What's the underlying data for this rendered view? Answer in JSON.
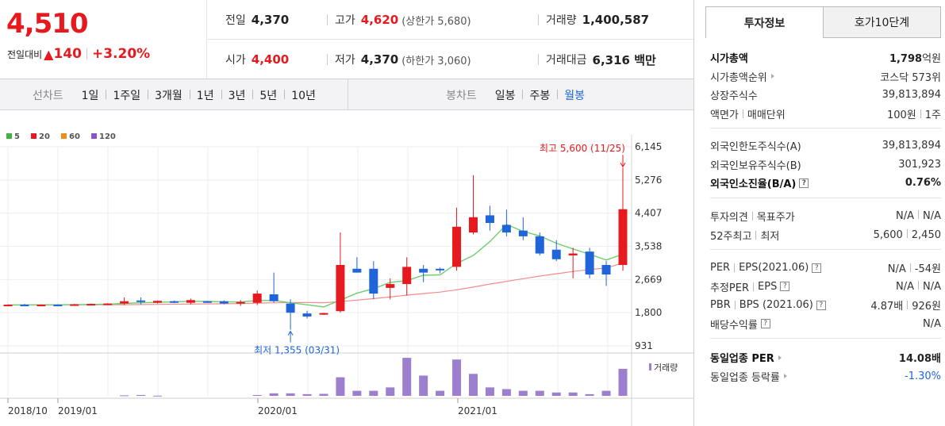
{
  "quote": {
    "price": "4,510",
    "change_label": "전일대비",
    "change_symbol": "▲",
    "change_value": "140",
    "change_rate": "+3.20%",
    "prev_close_label": "전일",
    "prev_close": "4,370",
    "high_label": "고가",
    "high": "4,620",
    "upper_limit": "(상한가 5,680)",
    "volume_label": "거래량",
    "volume": "1,400,587",
    "open_label": "시가",
    "open": "4,400",
    "low_label": "저가",
    "low": "4,370",
    "lower_limit": "(하한가 3,060)",
    "amount_label": "거래대금",
    "amount": "6,316 백만"
  },
  "tabs": {
    "line_title": "선차트",
    "line_tabs": [
      "1일",
      "1주일",
      "3개월",
      "1년",
      "3년",
      "5년",
      "10년"
    ],
    "candle_title": "봉차트",
    "candle_tabs": [
      "일봉",
      "주봉",
      "월봉"
    ],
    "candle_active": "월봉"
  },
  "chart_data": {
    "type": "candlestick",
    "legend": [
      "5",
      "20",
      "60",
      "120"
    ],
    "legend_colors": [
      "#3cb63c",
      "#e6191e",
      "#f08c1e",
      "#8a55c6"
    ],
    "y_ticks": [
      "6,145",
      "5,276",
      "4,407",
      "3,538",
      "2,669",
      "1,800",
      "931"
    ],
    "y_tick_values": [
      6145,
      5276,
      4407,
      3538,
      2669,
      1800,
      931
    ],
    "x_ticks": [
      "2018/10",
      "2019/01",
      "2020/01",
      "2021/01"
    ],
    "high_annotation": "최고 5,600 (11/25)",
    "low_annotation": "최저 1,355 (03/31)",
    "volume_label": "거래량",
    "up_color": "#e6191e",
    "down_color": "#1f64d8",
    "candles": [
      {
        "o": 2000,
        "h": 2020,
        "l": 1990,
        "c": 2010
      },
      {
        "o": 2010,
        "h": 2030,
        "l": 1990,
        "c": 2000
      },
      {
        "o": 2000,
        "h": 2020,
        "l": 1985,
        "c": 2010
      },
      {
        "o": 2010,
        "h": 2020,
        "l": 1995,
        "c": 2005
      },
      {
        "o": 2000,
        "h": 2030,
        "l": 1980,
        "c": 2020
      },
      {
        "o": 2010,
        "h": 2040,
        "l": 1990,
        "c": 2030
      },
      {
        "o": 2020,
        "h": 2050,
        "l": 2000,
        "c": 2040
      },
      {
        "o": 2040,
        "h": 2200,
        "l": 2000,
        "c": 2100
      },
      {
        "o": 2120,
        "h": 2200,
        "l": 2020,
        "c": 2080
      },
      {
        "o": 2060,
        "h": 2120,
        "l": 2040,
        "c": 2110
      },
      {
        "o": 2100,
        "h": 2120,
        "l": 2050,
        "c": 2070
      },
      {
        "o": 2060,
        "h": 2170,
        "l": 2020,
        "c": 2130
      },
      {
        "o": 2100,
        "h": 2110,
        "l": 2060,
        "c": 2080
      },
      {
        "o": 2100,
        "h": 2120,
        "l": 2020,
        "c": 2040
      },
      {
        "o": 2050,
        "h": 2130,
        "l": 1980,
        "c": 2080
      },
      {
        "o": 2060,
        "h": 2380,
        "l": 2000,
        "c": 2300
      },
      {
        "o": 2280,
        "h": 2850,
        "l": 2060,
        "c": 2100
      },
      {
        "o": 2040,
        "h": 2150,
        "l": 1355,
        "c": 1800
      },
      {
        "o": 1780,
        "h": 1850,
        "l": 1650,
        "c": 1700
      },
      {
        "o": 1760,
        "h": 1800,
        "l": 1740,
        "c": 1790
      },
      {
        "o": 1840,
        "h": 3900,
        "l": 1800,
        "c": 3050
      },
      {
        "o": 2950,
        "h": 3250,
        "l": 2850,
        "c": 2850
      },
      {
        "o": 2950,
        "h": 3150,
        "l": 2150,
        "c": 2300
      },
      {
        "o": 2450,
        "h": 2700,
        "l": 2150,
        "c": 2550
      },
      {
        "o": 2550,
        "h": 3250,
        "l": 2250,
        "c": 3000
      },
      {
        "o": 2950,
        "h": 3050,
        "l": 2600,
        "c": 2850
      },
      {
        "o": 2950,
        "h": 2980,
        "l": 2830,
        "c": 2920
      },
      {
        "o": 3000,
        "h": 4550,
        "l": 2900,
        "c": 4050
      },
      {
        "o": 3900,
        "h": 5400,
        "l": 3850,
        "c": 4300
      },
      {
        "o": 4350,
        "h": 4600,
        "l": 3950,
        "c": 4150
      },
      {
        "o": 4100,
        "h": 4500,
        "l": 3800,
        "c": 3900
      },
      {
        "o": 3950,
        "h": 4300,
        "l": 3700,
        "c": 3800
      },
      {
        "o": 3800,
        "h": 3900,
        "l": 3300,
        "c": 3350
      },
      {
        "o": 3450,
        "h": 3700,
        "l": 3150,
        "c": 3200
      },
      {
        "o": 3300,
        "h": 3500,
        "l": 2700,
        "c": 3350
      },
      {
        "o": 3400,
        "h": 3500,
        "l": 2700,
        "c": 2800
      },
      {
        "o": 3050,
        "h": 3150,
        "l": 2500,
        "c": 2800
      },
      {
        "o": 3050,
        "h": 5600,
        "l": 2900,
        "c": 4510
      }
    ],
    "ma5": [
      2000,
      2004,
      2005,
      2007,
      2009,
      2015,
      2024,
      2042,
      2058,
      2072,
      2086,
      2099,
      2095,
      2085,
      2080,
      2120,
      2124,
      2060,
      2006,
      1950,
      2130,
      2310,
      2430,
      2590,
      2640,
      2780,
      2790,
      3090,
      3300,
      3660,
      4110,
      3930,
      3810,
      3620,
      3470,
      3330,
      3180,
      3330
    ],
    "ma20": [
      2000,
      2002,
      2003,
      2004,
      2005,
      2006,
      2008,
      2010,
      2013,
      2017,
      2021,
      2025,
      2030,
      2035,
      2040,
      2050,
      2060,
      2065,
      2066,
      2062,
      2090,
      2130,
      2170,
      2210,
      2260,
      2300,
      2340,
      2400,
      2470,
      2550,
      2620,
      2690,
      2760,
      2820,
      2880,
      2930,
      2970,
      3100
    ],
    "volumes": [
      0,
      0,
      0,
      0,
      0,
      0,
      0,
      0.3,
      0.5,
      0.1,
      0,
      0,
      0,
      0,
      0,
      0.5,
      1.5,
      1.5,
      1.0,
      1.2,
      11.0,
      3.0,
      3.0,
      5.0,
      22.5,
      12.0,
      3.0,
      21.5,
      13.0,
      5.0,
      4.0,
      3.0,
      3.0,
      2.0,
      2.0,
      1.0,
      3.0,
      16.0
    ]
  },
  "sidebar": {
    "tab_active": "투자정보",
    "tab_other": "호가10단계",
    "group1": [
      {
        "k": "시가총액",
        "v": "1,798",
        "unit": "억원",
        "strong": true
      },
      {
        "k": "시가총액순위",
        "v": "코스닥 573위",
        "arrow": true
      },
      {
        "k": "상장주식수",
        "v": "39,813,894"
      },
      {
        "k": "액면가",
        "k2": "매매단위",
        "v": "100원",
        "v2": "1주"
      }
    ],
    "group2": [
      {
        "k": "외국인한도주식수(A)",
        "v": "39,813,894"
      },
      {
        "k": "외국인보유주식수(B)",
        "v": "301,923"
      },
      {
        "k": "외국인소진율(B/A)",
        "v": "0.76%",
        "strong": true,
        "help": true
      }
    ],
    "group3": [
      {
        "k": "투자의견",
        "k2": "목표주가",
        "v": "N/A",
        "v2": "N/A"
      },
      {
        "k": "52주최고",
        "k2": "최저",
        "v": "5,600",
        "v2": "2,450"
      }
    ],
    "group4": [
      {
        "k": "PER",
        "k2": "EPS(2021.06)",
        "v": "N/A",
        "v2": "-54원",
        "help": true
      },
      {
        "k": "추정PER",
        "k2": "EPS",
        "v": "N/A",
        "v2": "N/A",
        "help": true
      },
      {
        "k": "PBR",
        "k2": "BPS (2021.06)",
        "v": "4.87배",
        "v2": "926원",
        "help": true
      },
      {
        "k": "배당수익률",
        "v": "N/A",
        "help": true
      }
    ],
    "group5": [
      {
        "k": "동일업종 PER",
        "v": "14.08배",
        "strong": true,
        "arrow": true
      },
      {
        "k": "동일업종 등락률",
        "v": "-1.30%",
        "arrow": true,
        "blue": true
      }
    ]
  }
}
